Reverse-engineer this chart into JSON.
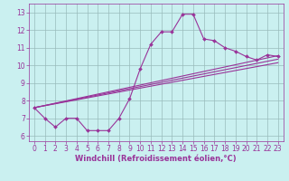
{
  "xlabel": "Windchill (Refroidissement éolien,°C)",
  "bg_color": "#caf0f0",
  "line_color": "#993399",
  "grid_color": "#99bbbb",
  "hours": [
    0,
    1,
    2,
    3,
    4,
    5,
    6,
    7,
    8,
    9,
    10,
    11,
    12,
    13,
    14,
    15,
    16,
    17,
    18,
    19,
    20,
    21,
    22,
    23
  ],
  "main_values": [
    7.6,
    7.0,
    6.5,
    7.0,
    7.0,
    6.3,
    6.3,
    6.3,
    7.0,
    8.1,
    9.8,
    11.2,
    11.9,
    11.9,
    12.9,
    12.9,
    11.5,
    11.4,
    11.0,
    10.8,
    10.5,
    10.3,
    10.6,
    10.5
  ],
  "trend1_start_y": 7.6,
  "trend1_end_y": 10.55,
  "trend2_start_y": 7.6,
  "trend2_end_y": 10.35,
  "trend3_start_y": 7.6,
  "trend3_end_y": 10.15,
  "ylim": [
    5.7,
    13.5
  ],
  "xlim": [
    -0.5,
    23.5
  ],
  "yticks": [
    6,
    7,
    8,
    9,
    10,
    11,
    12,
    13
  ],
  "xticks": [
    0,
    1,
    2,
    3,
    4,
    5,
    6,
    7,
    8,
    9,
    10,
    11,
    12,
    13,
    14,
    15,
    16,
    17,
    18,
    19,
    20,
    21,
    22,
    23
  ],
  "tick_color": "#993399",
  "label_color": "#993399",
  "tick_fontsize": 5.5,
  "xlabel_fontsize": 6.0
}
